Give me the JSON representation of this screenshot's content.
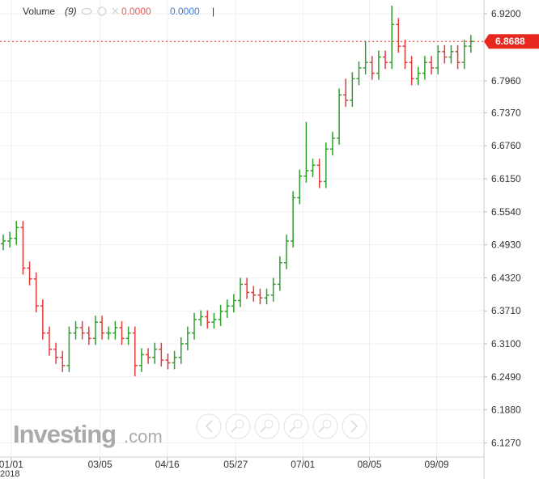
{
  "indicator": {
    "name": "Volume",
    "period": "(9)",
    "value_1": "0.0000",
    "value_2": "0.0000",
    "separator": "|"
  },
  "watermark": {
    "brand": "Investing",
    "suffix": ".com"
  },
  "chart_data": {
    "type": "ohlc",
    "up_color": "#2e9e2e",
    "down_color": "#e23b3b",
    "grid": true,
    "last_price": 6.8688,
    "last_price_color": "#e8281e",
    "year_label": "2018",
    "xlim": [
      0,
      72
    ],
    "xticks": [
      {
        "value": 1.2,
        "label": "01/01"
      },
      {
        "value": 14.7,
        "label": "03/05"
      },
      {
        "value": 24.9,
        "label": "04/16"
      },
      {
        "value": 35.3,
        "label": "05/27"
      },
      {
        "value": 45.5,
        "label": "07/01"
      },
      {
        "value": 55.6,
        "label": "08/05"
      },
      {
        "value": 65.8,
        "label": "09/09"
      }
    ],
    "ylim": [
      6.1007,
      6.9454
    ],
    "yticks": [
      {
        "value": 6.127,
        "label": "6.1270"
      },
      {
        "value": 6.188,
        "label": "6.1880"
      },
      {
        "value": 6.249,
        "label": "6.2490"
      },
      {
        "value": 6.31,
        "label": "6.3100"
      },
      {
        "value": 6.371,
        "label": "6.3710"
      },
      {
        "value": 6.432,
        "label": "6.4320"
      },
      {
        "value": 6.493,
        "label": "6.4930"
      },
      {
        "value": 6.554,
        "label": "6.5540"
      },
      {
        "value": 6.615,
        "label": "6.6150"
      },
      {
        "value": 6.676,
        "label": "6.6760"
      },
      {
        "value": 6.737,
        "label": "6.7370"
      },
      {
        "value": 6.796,
        "label": "6.7960"
      },
      {
        "value": 6.92,
        "label": "6.9200"
      }
    ],
    "open": [
      6.495,
      6.5,
      6.505,
      6.525,
      6.45,
      6.43,
      6.38,
      6.33,
      6.3,
      6.285,
      6.27,
      6.33,
      6.34,
      6.33,
      6.32,
      6.35,
      6.33,
      6.33,
      6.34,
      6.32,
      6.33,
      6.27,
      6.29,
      6.285,
      6.3,
      6.28,
      6.275,
      6.285,
      6.31,
      6.33,
      6.355,
      6.36,
      6.35,
      6.355,
      6.37,
      6.38,
      6.39,
      6.42,
      6.405,
      6.4,
      6.395,
      6.4,
      6.42,
      6.46,
      6.5,
      6.58,
      6.62,
      6.63,
      6.64,
      6.61,
      6.67,
      6.69,
      6.77,
      6.76,
      6.8,
      6.82,
      6.83,
      6.81,
      6.84,
      6.83,
      6.9,
      6.86,
      6.83,
      6.8,
      6.81,
      6.83,
      6.82,
      6.85,
      6.84,
      6.85,
      6.83,
      6.86
    ],
    "high": [
      6.512,
      6.517,
      6.537,
      6.537,
      6.462,
      6.442,
      6.392,
      6.342,
      6.312,
      6.297,
      6.342,
      6.352,
      6.352,
      6.342,
      6.362,
      6.362,
      6.342,
      6.352,
      6.352,
      6.342,
      6.342,
      6.302,
      6.302,
      6.312,
      6.312,
      6.292,
      6.297,
      6.322,
      6.342,
      6.367,
      6.372,
      6.372,
      6.367,
      6.382,
      6.392,
      6.402,
      6.432,
      6.432,
      6.417,
      6.412,
      6.412,
      6.432,
      6.472,
      6.512,
      6.592,
      6.632,
      6.72,
      6.652,
      6.652,
      6.682,
      6.702,
      6.782,
      6.8,
      6.812,
      6.832,
      6.87,
      6.842,
      6.852,
      6.852,
      6.935,
      6.912,
      6.872,
      6.842,
      6.822,
      6.842,
      6.842,
      6.862,
      6.862,
      6.862,
      6.862,
      6.872,
      6.881
    ],
    "low": [
      6.483,
      6.488,
      6.493,
      6.438,
      6.418,
      6.368,
      6.318,
      6.288,
      6.273,
      6.258,
      6.258,
      6.318,
      6.318,
      6.308,
      6.308,
      6.318,
      6.318,
      6.318,
      6.308,
      6.308,
      6.25,
      6.258,
      6.273,
      6.273,
      6.268,
      6.263,
      6.263,
      6.273,
      6.298,
      6.318,
      6.343,
      6.338,
      6.338,
      6.343,
      6.358,
      6.368,
      6.378,
      6.393,
      6.388,
      6.383,
      6.383,
      6.388,
      6.408,
      6.448,
      6.488,
      6.568,
      6.608,
      6.618,
      6.598,
      6.598,
      6.658,
      6.678,
      6.748,
      6.748,
      6.788,
      6.808,
      6.798,
      6.798,
      6.818,
      6.818,
      6.848,
      6.818,
      6.788,
      6.788,
      6.798,
      6.808,
      6.808,
      6.828,
      6.828,
      6.818,
      6.818,
      6.848
    ],
    "close": [
      6.5,
      6.505,
      6.525,
      6.45,
      6.43,
      6.38,
      6.33,
      6.3,
      6.285,
      6.27,
      6.33,
      6.34,
      6.33,
      6.32,
      6.35,
      6.33,
      6.33,
      6.34,
      6.32,
      6.33,
      6.27,
      6.29,
      6.285,
      6.3,
      6.28,
      6.275,
      6.285,
      6.31,
      6.33,
      6.355,
      6.36,
      6.35,
      6.355,
      6.37,
      6.38,
      6.39,
      6.42,
      6.405,
      6.4,
      6.395,
      6.4,
      6.42,
      6.46,
      6.5,
      6.58,
      6.62,
      6.63,
      6.64,
      6.61,
      6.67,
      6.69,
      6.77,
      6.76,
      6.8,
      6.82,
      6.83,
      6.81,
      6.84,
      6.83,
      6.9,
      6.86,
      6.83,
      6.8,
      6.81,
      6.83,
      6.82,
      6.85,
      6.84,
      6.85,
      6.83,
      6.86,
      6.869
    ]
  }
}
